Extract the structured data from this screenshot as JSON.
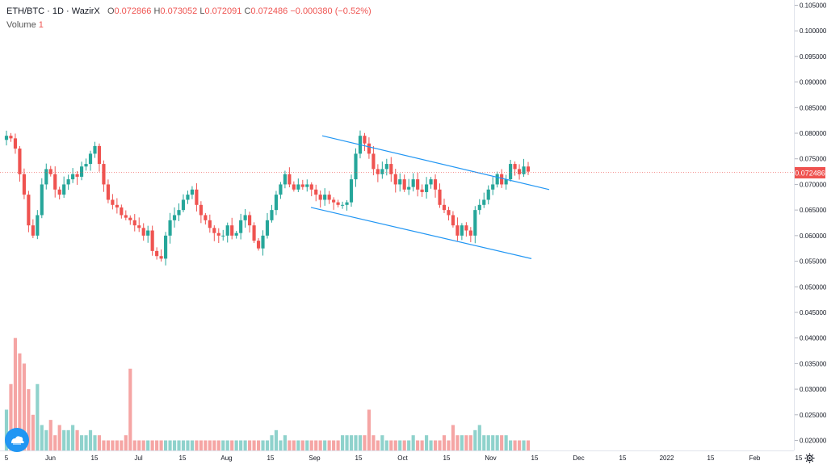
{
  "header": {
    "symbol": "ETH/BTC",
    "sep1": "·",
    "interval": "1D",
    "sep2": "·",
    "exchange": "WazirX",
    "o_label": "O",
    "o_value": "0.072866",
    "h_label": "H",
    "h_value": "0.073052",
    "l_label": "L",
    "l_value": "0.072091",
    "c_label": "C",
    "c_value": "0.072486",
    "change": "−0.000380 (−0.52%)",
    "volume_label": "Volume",
    "volume_value": "1"
  },
  "colors": {
    "up": "#26a69a",
    "down": "#ef5350",
    "up_volume": "#8fd2cc",
    "down_volume": "#f5a5a4",
    "channel": "#2196f3",
    "price_tag": "#ef5350",
    "grid_line": "#e0e3eb"
  },
  "icons": {
    "settings": "gear-icon",
    "logo": "cloud-logo-icon"
  },
  "chart_data": {
    "type": "candlestick",
    "title": "ETH/BTC · 1D · WazirX",
    "y_axis": {
      "ticks": [
        "0.105000",
        "0.100000",
        "0.095000",
        "0.090000",
        "0.085000",
        "0.080000",
        "0.075000",
        "0.070000",
        "0.065000",
        "0.060000",
        "0.055000",
        "0.050000",
        "0.045000",
        "0.040000",
        "0.035000",
        "0.030000",
        "0.025000",
        "0.020000"
      ],
      "range": [
        0.0195,
        0.1055
      ]
    },
    "x_axis": {
      "ticks": [
        "5",
        "Jun",
        "15",
        "Jul",
        "15",
        "Aug",
        "15",
        "Sep",
        "15",
        "Oct",
        "15",
        "Nov",
        "15",
        "Dec",
        "15",
        "2022",
        "15",
        "Feb",
        "15"
      ]
    },
    "last_price": "0.072486",
    "series": [
      {
        "name": "ETH/BTC",
        "closes": [
          0.0795,
          0.079,
          0.077,
          0.072,
          0.068,
          0.062,
          0.06,
          0.064,
          0.07,
          0.073,
          0.072,
          0.069,
          0.068,
          0.07,
          0.071,
          0.072,
          0.0715,
          0.0735,
          0.074,
          0.076,
          0.0775,
          0.074,
          0.07,
          0.067,
          0.066,
          0.0655,
          0.064,
          0.0635,
          0.063,
          0.062,
          0.0615,
          0.06,
          0.061,
          0.057,
          0.056,
          0.0555,
          0.06,
          0.063,
          0.064,
          0.065,
          0.067,
          0.068,
          0.069,
          0.066,
          0.064,
          0.063,
          0.0615,
          0.0605,
          0.06,
          0.06,
          0.062,
          0.06,
          0.0605,
          0.063,
          0.064,
          0.062,
          0.059,
          0.0575,
          0.06,
          0.063,
          0.065,
          0.068,
          0.07,
          0.072,
          0.07,
          0.069,
          0.07,
          0.0695,
          0.07,
          0.069,
          0.068,
          0.067,
          0.068,
          0.067,
          0.0665,
          0.066,
          0.066,
          0.0665,
          0.071,
          0.076,
          0.0795,
          0.078,
          0.076,
          0.073,
          0.072,
          0.073,
          0.074,
          0.072,
          0.07,
          0.071,
          0.069,
          0.0695,
          0.071,
          0.069,
          0.0685,
          0.07,
          0.071,
          0.069,
          0.066,
          0.065,
          0.064,
          0.062,
          0.06,
          0.062,
          0.061,
          0.06,
          0.065,
          0.066,
          0.067,
          0.069,
          0.07,
          0.072,
          0.07,
          0.071,
          0.074,
          0.073,
          0.072,
          0.0735,
          0.0725
        ]
      },
      {
        "name": "Volume",
        "values": [
          0.026,
          0.031,
          0.04,
          0.037,
          0.035,
          0.03,
          0.025,
          0.031,
          0.023,
          0.022,
          0.024,
          0.021,
          0.023,
          0.022,
          0.022,
          0.023,
          0.022,
          0.021,
          0.021,
          0.022,
          0.021,
          0.021,
          0.02,
          0.02,
          0.02,
          0.02,
          0.02,
          0.021,
          0.034,
          0.02,
          0.02,
          0.02,
          0.02,
          0.02,
          0.02,
          0.02,
          0.02,
          0.02,
          0.02,
          0.02,
          0.02,
          0.02,
          0.02,
          0.02,
          0.02,
          0.02,
          0.02,
          0.02,
          0.02,
          0.02,
          0.02,
          0.02,
          0.02,
          0.02,
          0.02,
          0.02,
          0.02,
          0.02,
          0.02,
          0.02,
          0.021,
          0.022,
          0.02,
          0.021,
          0.02,
          0.02,
          0.02,
          0.02,
          0.02,
          0.02,
          0.02,
          0.02,
          0.02,
          0.02,
          0.02,
          0.02,
          0.021,
          0.021,
          0.021,
          0.021,
          0.021,
          0.021,
          0.026,
          0.021,
          0.02,
          0.021,
          0.02,
          0.02,
          0.02,
          0.02,
          0.02,
          0.02,
          0.021,
          0.02,
          0.02,
          0.021,
          0.02,
          0.02,
          0.02,
          0.021,
          0.02,
          0.023,
          0.021,
          0.021,
          0.021,
          0.021,
          0.022,
          0.023,
          0.021,
          0.021,
          0.021,
          0.021,
          0.021,
          0.021,
          0.02,
          0.02,
          0.02,
          0.02,
          0.02
        ]
      }
    ],
    "annotations": [
      {
        "type": "trend-line",
        "label": "upper channel",
        "from": [
          "Sep",
          "0.0795"
        ],
        "to": [
          "Dec",
          "0.0690"
        ]
      },
      {
        "type": "trend-line",
        "label": "lower channel",
        "from": [
          "Sep",
          "0.0655"
        ],
        "to": [
          "Nov",
          "0.0555"
        ]
      }
    ]
  }
}
